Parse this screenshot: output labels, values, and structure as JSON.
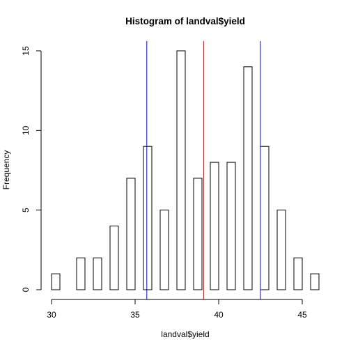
{
  "chart_data": {
    "type": "bar",
    "title": "Histogram of landval$yield",
    "xlabel": "landval$yield",
    "ylabel": "Frequency",
    "bin_width": 0.5,
    "x": [
      30.25,
      30.75,
      31.25,
      31.75,
      32.25,
      32.75,
      33.25,
      33.75,
      34.25,
      34.75,
      35.25,
      35.75,
      36.25,
      36.75,
      37.25,
      37.75,
      38.25,
      38.75,
      39.25,
      39.75,
      40.25,
      40.75,
      41.25,
      41.75,
      42.25,
      42.75,
      43.25,
      43.75,
      44.25,
      44.75,
      45.25,
      45.75
    ],
    "values": [
      1,
      0,
      0,
      2,
      0,
      2,
      0,
      4,
      0,
      7,
      0,
      9,
      0,
      5,
      0,
      15,
      0,
      7,
      0,
      8,
      0,
      8,
      0,
      14,
      0,
      9,
      0,
      5,
      0,
      2,
      0,
      1
    ],
    "xlim": [
      30,
      46
    ],
    "ylim": [
      0,
      15
    ],
    "x_ticks": [
      "30",
      "35",
      "40",
      "45"
    ],
    "y_ticks": [
      "0",
      "5",
      "10",
      "15"
    ],
    "vlines": [
      {
        "x": 35.7,
        "color": "#0000ff"
      },
      {
        "x": 39.1,
        "color": "#ff0000"
      },
      {
        "x": 42.5,
        "color": "#0000ff"
      }
    ],
    "grid": false
  }
}
